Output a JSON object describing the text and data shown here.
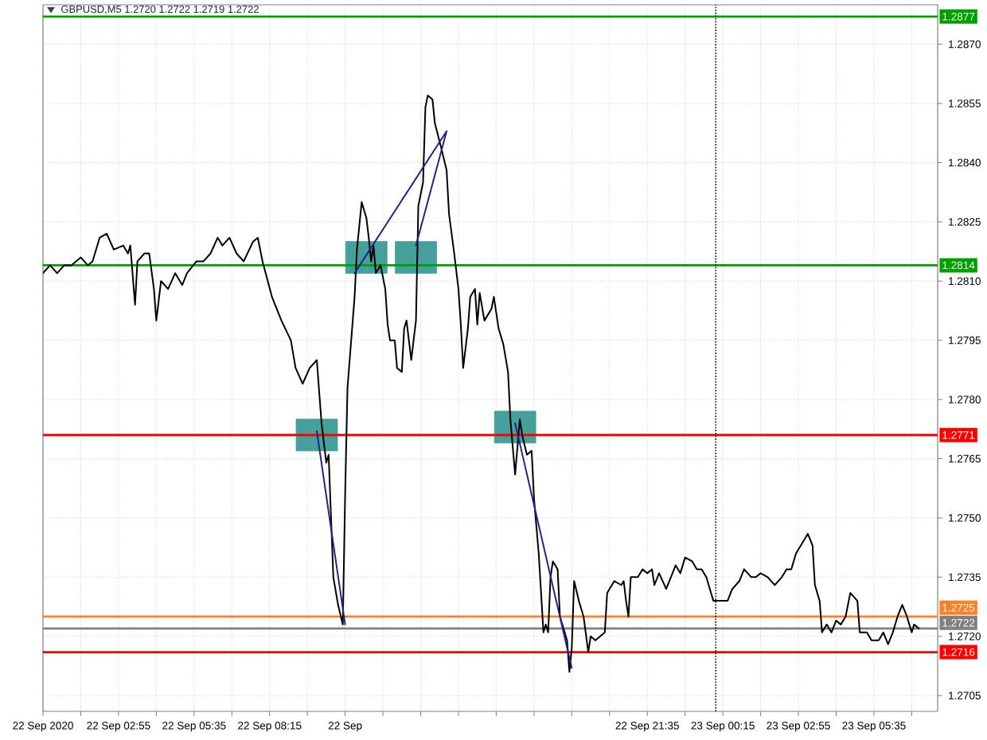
{
  "chart_data": {
    "type": "line",
    "title": "GBPUSD,M5 1.2720 1.2722 1.2719 1.2722",
    "xlim": [
      "2020-09-22T00:15",
      "2020-09-23T07:50"
    ],
    "ylim": [
      1.2701,
      1.288
    ],
    "xticks": [
      {
        "value": "2020-09-22T00:15",
        "label": "22 Sep 2020"
      },
      {
        "value": "2020-09-22T01:35",
        "label": null
      },
      {
        "value": "2020-09-22T02:55",
        "label": "22 Sep 02:55"
      },
      {
        "value": "2020-09-22T04:15",
        "label": null
      },
      {
        "value": "2020-09-22T05:35",
        "label": "22 Sep 05:35"
      },
      {
        "value": "2020-09-22T06:55",
        "label": null
      },
      {
        "value": "2020-09-22T08:15",
        "label": "22 Sep 08:15"
      },
      {
        "value": "2020-09-22T09:35",
        "label": null
      },
      {
        "value": "2020-09-22T10:55",
        "label": "22 Sep"
      },
      {
        "value": "2020-09-22T12:15",
        "label": null
      },
      {
        "value": "2020-09-22T13:35",
        "label": null
      },
      {
        "value": "2020-09-22T14:55",
        "label": null
      },
      {
        "value": "2020-09-22T16:15",
        "label": null
      },
      {
        "value": "2020-09-22T17:35",
        "label": null
      },
      {
        "value": "2020-09-22T18:55",
        "label": null
      },
      {
        "value": "2020-09-22T20:15",
        "label": null
      },
      {
        "value": "2020-09-22T21:35",
        "label": "22 Sep 21:35"
      },
      {
        "value": "2020-09-22T22:55",
        "label": null
      },
      {
        "value": "2020-09-23T00:15",
        "label": "23 Sep 00:15"
      },
      {
        "value": "2020-09-23T01:35",
        "label": null
      },
      {
        "value": "2020-09-23T02:55",
        "label": "23 Sep 02:55"
      },
      {
        "value": "2020-09-23T04:15",
        "label": null
      },
      {
        "value": "2020-09-23T05:35",
        "label": "23 Sep 05:35"
      },
      {
        "value": "2020-09-23T06:55",
        "label": null
      }
    ],
    "yticks": [
      1.2705,
      {
        "value": 1.272,
        "label": "1.2720"
      },
      1.2735,
      {
        "value": 1.275,
        "label": "1.2750"
      },
      1.2765,
      {
        "value": 1.278,
        "label": "1.2780"
      },
      1.2795,
      {
        "value": 1.281,
        "label": "1.2810"
      },
      1.2825,
      {
        "value": 1.284,
        "label": "1.2840"
      },
      1.2855,
      {
        "value": 1.287,
        "label": "1.2870"
      }
    ],
    "grid": true,
    "ref_lines": [
      {
        "axis": "y",
        "value": 1.2877,
        "label": "1.2877",
        "color": "#00a000"
      },
      {
        "axis": "y",
        "value": 1.2814,
        "label": "1.2814",
        "color": "#00a000"
      },
      {
        "axis": "y",
        "value": 1.2771,
        "label": "1.2771",
        "color": "#ff0000"
      },
      {
        "axis": "y",
        "value": 1.2725,
        "label": "1.2725",
        "color": "#ff7f27"
      },
      {
        "axis": "y",
        "value": 1.2722,
        "label": "1.2722",
        "color": "#808080"
      },
      {
        "axis": "y",
        "value": 1.2716,
        "label": "1.2716",
        "color": "#ff0000"
      },
      {
        "axis": "x",
        "value": "2020-09-23T00:00",
        "color": "#000000",
        "line_style": "dotted"
      }
    ],
    "series": [
      {
        "color": "#000000",
        "x": [
          "2020-09-22T00:15",
          "2020-09-22T00:30",
          "2020-09-22T00:45",
          "2020-09-22T01:00",
          "2020-09-22T01:15",
          "2020-09-22T01:35",
          "2020-09-22T01:50",
          "2020-09-22T02:00",
          "2020-09-22T02:15",
          "2020-09-22T02:30",
          "2020-09-22T02:45",
          "2020-09-22T03:05",
          "2020-09-22T03:15",
          "2020-09-22T03:20",
          "2020-09-22T03:30",
          "2020-09-22T03:35",
          "2020-09-22T03:50",
          "2020-09-22T04:00",
          "2020-09-22T04:10",
          "2020-09-22T04:15",
          "2020-09-22T04:25",
          "2020-09-22T04:40",
          "2020-09-22T04:55",
          "2020-09-22T05:10",
          "2020-09-22T05:20",
          "2020-09-22T05:40",
          "2020-09-22T05:55",
          "2020-09-22T06:10",
          "2020-09-22T06:25",
          "2020-09-22T06:35",
          "2020-09-22T06:50",
          "2020-09-22T07:05",
          "2020-09-22T07:20",
          "2020-09-22T07:40",
          "2020-09-22T07:50",
          "2020-09-22T08:00",
          "2020-09-22T08:20",
          "2020-09-22T08:40",
          "2020-09-22T09:00",
          "2020-09-22T09:10",
          "2020-09-22T09:25",
          "2020-09-22T09:40",
          "2020-09-22T09:55",
          "2020-09-22T10:05",
          "2020-09-22T10:15",
          "2020-09-22T10:20",
          "2020-09-22T10:30",
          "2020-09-22T10:40",
          "2020-09-22T10:50",
          "2020-09-22T10:55",
          "2020-09-22T11:00",
          "2020-09-22T11:15",
          "2020-09-22T11:20",
          "2020-09-22T11:30",
          "2020-09-22T11:40",
          "2020-09-22T11:45",
          "2020-09-22T11:50",
          "2020-09-22T11:55",
          "2020-09-22T12:00",
          "2020-09-22T12:10",
          "2020-09-22T12:20",
          "2020-09-22T12:25",
          "2020-09-22T12:30",
          "2020-09-22T12:40",
          "2020-09-22T12:45",
          "2020-09-22T12:55",
          "2020-09-22T13:00",
          "2020-09-22T13:05",
          "2020-09-22T13:15",
          "2020-09-22T13:25",
          "2020-09-22T13:30",
          "2020-09-22T13:40",
          "2020-09-22T13:45",
          "2020-09-22T13:50",
          "2020-09-22T14:00",
          "2020-09-22T14:05",
          "2020-09-22T14:20",
          "2020-09-22T14:30",
          "2020-09-22T14:35",
          "2020-09-22T14:45",
          "2020-09-22T14:55",
          "2020-09-22T15:00",
          "2020-09-22T15:05",
          "2020-09-22T15:15",
          "2020-09-22T15:20",
          "2020-09-22T15:30",
          "2020-09-22T15:35",
          "2020-09-22T15:40",
          "2020-09-22T15:50",
          "2020-09-22T16:05",
          "2020-09-22T16:10",
          "2020-09-22T16:20",
          "2020-09-22T16:30",
          "2020-09-22T16:40",
          "2020-09-22T16:45",
          "2020-09-22T16:55",
          "2020-09-22T17:05",
          "2020-09-22T17:10",
          "2020-09-22T17:20",
          "2020-09-22T17:30",
          "2020-09-22T17:35",
          "2020-09-22T17:45",
          "2020-09-22T17:55",
          "2020-09-22T18:00",
          "2020-09-22T18:05",
          "2020-09-22T18:10",
          "2020-09-22T18:15",
          "2020-09-22T18:25",
          "2020-09-22T18:30",
          "2020-09-22T18:35",
          "2020-09-22T18:45",
          "2020-09-22T18:50",
          "2020-09-22T18:55",
          "2020-09-22T19:00",
          "2020-09-22T19:10",
          "2020-09-22T19:15",
          "2020-09-22T19:20",
          "2020-09-22T19:30",
          "2020-09-22T19:35",
          "2020-09-22T19:45",
          "2020-09-22T19:55",
          "2020-09-22T20:05",
          "2020-09-22T20:10",
          "2020-09-22T20:15",
          "2020-09-22T20:25",
          "2020-09-22T20:40",
          "2020-09-22T20:45",
          "2020-09-22T20:50",
          "2020-09-22T20:55",
          "2020-09-22T21:00",
          "2020-09-22T21:15",
          "2020-09-22T21:25",
          "2020-09-22T21:35",
          "2020-09-22T21:45",
          "2020-09-22T21:50",
          "2020-09-22T22:00",
          "2020-09-22T22:15",
          "2020-09-22T22:25",
          "2020-09-22T22:35",
          "2020-09-22T22:45",
          "2020-09-22T22:55",
          "2020-09-22T23:10",
          "2020-09-22T23:20",
          "2020-09-22T23:30",
          "2020-09-22T23:40",
          "2020-09-22T23:50",
          "2020-09-22T23:55",
          "2020-09-23T00:10",
          "2020-09-23T00:25",
          "2020-09-23T00:35",
          "2020-09-23T00:50",
          "2020-09-23T01:00",
          "2020-09-23T01:15",
          "2020-09-23T01:25",
          "2020-09-23T01:35",
          "2020-09-23T01:50",
          "2020-09-23T02:05",
          "2020-09-23T02:20",
          "2020-09-23T02:30",
          "2020-09-23T02:40",
          "2020-09-23T02:50",
          "2020-09-23T03:00",
          "2020-09-23T03:15",
          "2020-09-23T03:25",
          "2020-09-23T03:30",
          "2020-09-23T03:40",
          "2020-09-23T03:45",
          "2020-09-23T03:55",
          "2020-09-23T04:05",
          "2020-09-23T04:15",
          "2020-09-23T04:25",
          "2020-09-23T04:35",
          "2020-09-23T04:45",
          "2020-09-23T05:00",
          "2020-09-23T05:05",
          "2020-09-23T05:20",
          "2020-09-23T05:30",
          "2020-09-23T05:45",
          "2020-09-23T05:55",
          "2020-09-23T06:05",
          "2020-09-23T06:15",
          "2020-09-23T06:25",
          "2020-09-23T06:35",
          "2020-09-23T06:45",
          "2020-09-23T06:55",
          "2020-09-23T07:00",
          "2020-09-23T07:10"
        ],
        "values": [
          1.2812,
          1.2814,
          1.2812,
          1.2814,
          1.2814,
          1.2816,
          1.2814,
          1.2815,
          1.2821,
          1.2822,
          1.2818,
          1.2819,
          1.2817,
          1.2819,
          1.2804,
          1.2815,
          1.2817,
          1.2817,
          1.2808,
          1.28,
          1.281,
          1.2808,
          1.2812,
          1.2809,
          1.2812,
          1.2815,
          1.2815,
          1.2817,
          1.2821,
          1.2819,
          1.2821,
          1.2817,
          1.2815,
          1.282,
          1.2821,
          1.2815,
          1.2806,
          1.28,
          1.2795,
          1.2788,
          1.2784,
          1.2788,
          1.279,
          1.2774,
          1.2764,
          1.2766,
          1.2735,
          1.2728,
          1.2723,
          1.2756,
          1.2783,
          1.2806,
          1.2818,
          1.283,
          1.2826,
          1.2821,
          1.2815,
          1.2819,
          1.2812,
          1.2814,
          1.2808,
          1.2799,
          1.2795,
          1.2795,
          1.2788,
          1.2787,
          1.2798,
          1.28,
          1.279,
          1.28,
          1.2829,
          1.2835,
          1.2854,
          1.2857,
          1.2856,
          1.285,
          1.2843,
          1.2838,
          1.2827,
          1.2818,
          1.2808,
          1.2799,
          1.2788,
          1.2798,
          1.2806,
          1.2808,
          1.2799,
          1.2807,
          1.28,
          1.2803,
          1.2806,
          1.2798,
          1.2794,
          1.2787,
          1.2775,
          1.2761,
          1.2775,
          1.2771,
          1.2766,
          1.2767,
          1.2755,
          1.2741,
          1.2721,
          1.2723,
          1.2721,
          1.2735,
          1.2739,
          1.2737,
          1.2725,
          1.2723,
          1.2719,
          1.2711,
          1.2717,
          1.2734,
          1.2729,
          1.2727,
          1.2725,
          1.2716,
          1.272,
          1.2719,
          1.272,
          1.2721,
          1.2731,
          1.2732,
          1.2734,
          1.2733,
          1.2734,
          1.2729,
          1.2725,
          1.2735,
          1.2735,
          1.2737,
          1.2736,
          1.2737,
          1.2733,
          1.2736,
          1.2732,
          1.2735,
          1.2738,
          1.2736,
          1.274,
          1.2739,
          1.2737,
          1.2737,
          1.2735,
          1.2731,
          1.2729,
          1.2729,
          1.2729,
          1.2732,
          1.2734,
          1.2737,
          1.2735,
          1.2735,
          1.2736,
          1.2735,
          1.2733,
          1.2735,
          1.2737,
          1.2737,
          1.2741,
          1.2743,
          1.2746,
          1.2743,
          1.2733,
          1.2729,
          1.2721,
          1.2723,
          1.2721,
          1.2724,
          1.2723,
          1.2725,
          1.2731,
          1.2729,
          1.2721,
          1.2721,
          1.2719,
          1.2719,
          1.2721,
          1.2718,
          1.2721,
          1.2725,
          1.2728,
          1.2725,
          1.2721,
          1.2723,
          1.2722
        ]
      },
      {
        "type": "scatter",
        "color": "#45a09b",
        "marker": "square",
        "x": [
          "2020-09-22T09:55",
          "2020-09-22T11:40",
          "2020-09-22T13:25",
          "2020-09-22T16:55"
        ],
        "values": [
          1.2771,
          1.2816,
          1.2816,
          1.2773
        ]
      },
      {
        "color": "#23238e",
        "x": [
          "2020-09-22T09:55",
          "2020-09-22T10:55"
        ],
        "values": [
          1.2772,
          1.2723
        ]
      },
      {
        "color": "#23238e",
        "x": [
          "2020-09-22T11:15",
          "2020-09-22T14:30",
          "2020-09-22T13:25"
        ],
        "values": [
          1.2812,
          1.2848,
          1.2819
        ]
      },
      {
        "color": "#23238e",
        "x": [
          "2020-09-22T16:55",
          "2020-09-22T18:55"
        ],
        "values": [
          1.2774,
          1.2712
        ]
      }
    ]
  }
}
